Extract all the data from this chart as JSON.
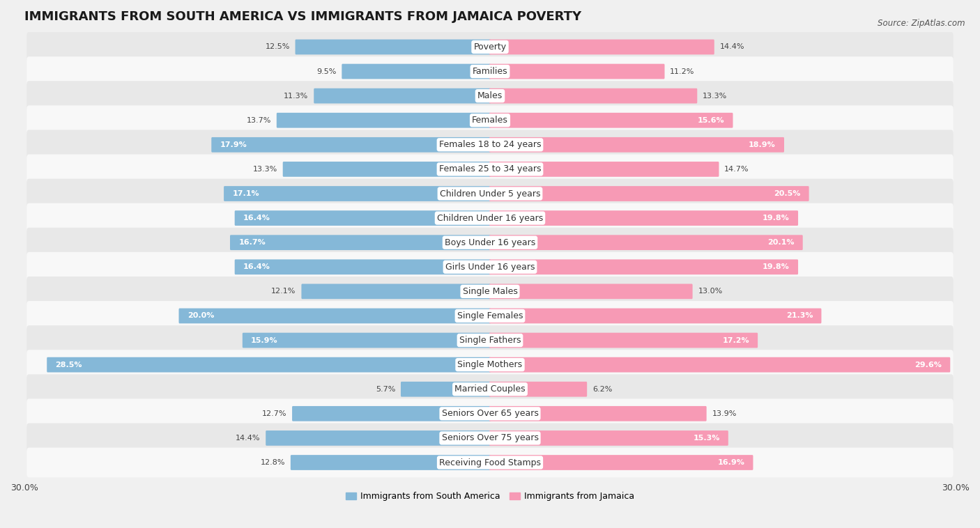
{
  "title": "IMMIGRANTS FROM SOUTH AMERICA VS IMMIGRANTS FROM JAMAICA POVERTY",
  "source": "Source: ZipAtlas.com",
  "categories": [
    "Poverty",
    "Families",
    "Males",
    "Females",
    "Females 18 to 24 years",
    "Females 25 to 34 years",
    "Children Under 5 years",
    "Children Under 16 years",
    "Boys Under 16 years",
    "Girls Under 16 years",
    "Single Males",
    "Single Females",
    "Single Fathers",
    "Single Mothers",
    "Married Couples",
    "Seniors Over 65 years",
    "Seniors Over 75 years",
    "Receiving Food Stamps"
  ],
  "south_america": [
    12.5,
    9.5,
    11.3,
    13.7,
    17.9,
    13.3,
    17.1,
    16.4,
    16.7,
    16.4,
    12.1,
    20.0,
    15.9,
    28.5,
    5.7,
    12.7,
    14.4,
    12.8
  ],
  "jamaica": [
    14.4,
    11.2,
    13.3,
    15.6,
    18.9,
    14.7,
    20.5,
    19.8,
    20.1,
    19.8,
    13.0,
    21.3,
    17.2,
    29.6,
    6.2,
    13.9,
    15.3,
    16.9
  ],
  "color_south_america": "#85b8d8",
  "color_jamaica": "#f79ab5",
  "background_color": "#f0f0f0",
  "row_color_even": "#e8e8e8",
  "row_color_odd": "#f8f8f8",
  "axis_limit": 30.0,
  "title_fontsize": 13,
  "label_fontsize": 9,
  "value_fontsize": 8,
  "white_text_threshold": 15.0
}
